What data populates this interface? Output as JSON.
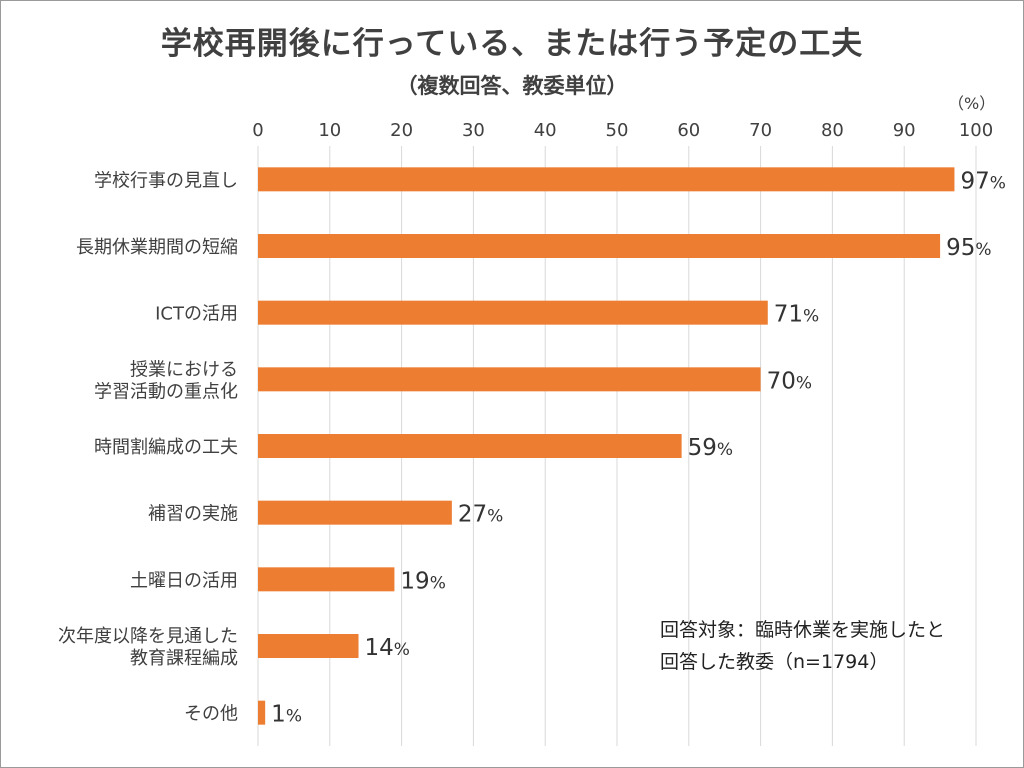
{
  "title": "学校再開後に行っている、または行う予定の工夫",
  "subtitle": "（複数回答、教委単位）",
  "unit_label": "（%）",
  "note_lines": [
    "回答対象：臨時休業を実施したと",
    "回答した教委（n=1794）"
  ],
  "colors": {
    "bar": "#ED7D31"
  },
  "chart_data": {
    "type": "bar",
    "orientation": "horizontal",
    "categories": [
      [
        "学校行事の見直し"
      ],
      [
        "長期休業期間の短縮"
      ],
      [
        "ICTの活用"
      ],
      [
        "授業における",
        "学習活動の重点化"
      ],
      [
        "時間割編成の工夫"
      ],
      [
        "補習の実施"
      ],
      [
        "土曜日の活用"
      ],
      [
        "次年度以降を見通した",
        "教育課程編成"
      ],
      [
        "その他"
      ]
    ],
    "values": [
      97,
      95,
      71,
      70,
      59,
      27,
      19,
      14,
      1
    ],
    "value_suffix": "%",
    "xlim": [
      0,
      100
    ],
    "xticks": [
      0,
      10,
      20,
      30,
      40,
      50,
      60,
      70,
      80,
      90,
      100
    ],
    "grid": true
  }
}
